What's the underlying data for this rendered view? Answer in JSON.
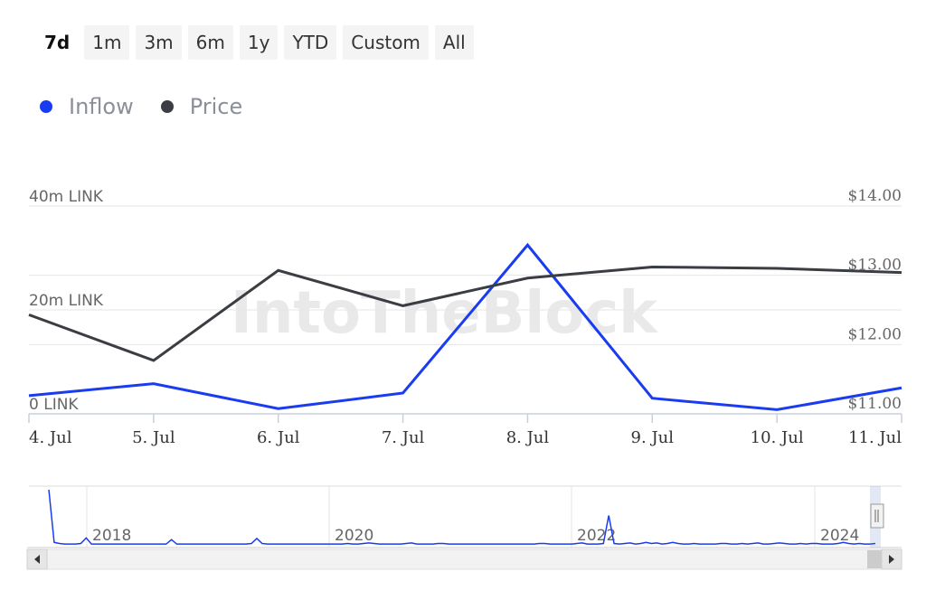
{
  "range_selector": {
    "buttons": [
      {
        "label": "7d",
        "active": true
      },
      {
        "label": "1m",
        "active": false
      },
      {
        "label": "3m",
        "active": false
      },
      {
        "label": "6m",
        "active": false
      },
      {
        "label": "1y",
        "active": false
      },
      {
        "label": "YTD",
        "active": false
      },
      {
        "label": "Custom",
        "active": false
      },
      {
        "label": "All",
        "active": false
      }
    ]
  },
  "legend": [
    {
      "label": "Inflow",
      "color": "#1a3cf0"
    },
    {
      "label": "Price",
      "color": "#3a3d42"
    }
  ],
  "watermark": "IntoTheBlock",
  "chart_data": {
    "type": "line",
    "categories": [
      "4. Jul",
      "5. Jul",
      "6. Jul",
      "7. Jul",
      "8. Jul",
      "9. Jul",
      "10. Jul",
      "11. Jul"
    ],
    "left_axis": {
      "labels": [
        "40m LINK",
        "20m LINK",
        "0 LINK"
      ],
      "values": [
        40,
        20,
        0
      ],
      "ylim": [
        0,
        40
      ]
    },
    "right_axis": {
      "labels": [
        "$14.00",
        "$13.00",
        "$12.00",
        "$11.00"
      ],
      "values": [
        14,
        13,
        12,
        11
      ],
      "ylim": [
        11,
        14
      ]
    },
    "series": [
      {
        "name": "Inflow",
        "axis": "left",
        "color": "#1a3cf0",
        "values": [
          3.5,
          5.8,
          1.0,
          4.0,
          32.5,
          3.0,
          0.8,
          5.0
        ]
      },
      {
        "name": "Price",
        "axis": "right",
        "color": "#3a3d42",
        "values": [
          12.43,
          11.77,
          13.07,
          12.56,
          12.96,
          13.12,
          13.1,
          13.04
        ]
      }
    ],
    "grid": true,
    "legend_position": "top-left"
  },
  "navigator": {
    "year_labels": [
      "2018",
      "2020",
      "2022",
      "2024"
    ],
    "line_color": "#1a3cf0",
    "overview_values": [
      100,
      6,
      4,
      3,
      3,
      3,
      4,
      14,
      3,
      3,
      3,
      3,
      3,
      3,
      3,
      3,
      3,
      3,
      3,
      3,
      3,
      3,
      3,
      11,
      3,
      3,
      3,
      3,
      3,
      3,
      3,
      3,
      3,
      3,
      3,
      3,
      3,
      3,
      4,
      13,
      4,
      3,
      3,
      3,
      3,
      3,
      3,
      3,
      3,
      3,
      3,
      3,
      3,
      3,
      3,
      3,
      4,
      3,
      3,
      4,
      5,
      4,
      3,
      3,
      3,
      3,
      3,
      4,
      5,
      3,
      3,
      3,
      3,
      4,
      4,
      3,
      3,
      3,
      3,
      3,
      3,
      3,
      3,
      3,
      3,
      3,
      3,
      3,
      3,
      3,
      3,
      3,
      4,
      4,
      3,
      3,
      3,
      3,
      3,
      4,
      5,
      3,
      3,
      3,
      4,
      54,
      4,
      3,
      4,
      5,
      3,
      4,
      6,
      4,
      5,
      3,
      4,
      6,
      4,
      3,
      3,
      4,
      3,
      3,
      3,
      3,
      4,
      4,
      3,
      3,
      4,
      3,
      4,
      5,
      3,
      3,
      4,
      5,
      4,
      3,
      3,
      4,
      3,
      4,
      4,
      3,
      3,
      3,
      4,
      6,
      4,
      3,
      4,
      3,
      3,
      4
    ]
  }
}
